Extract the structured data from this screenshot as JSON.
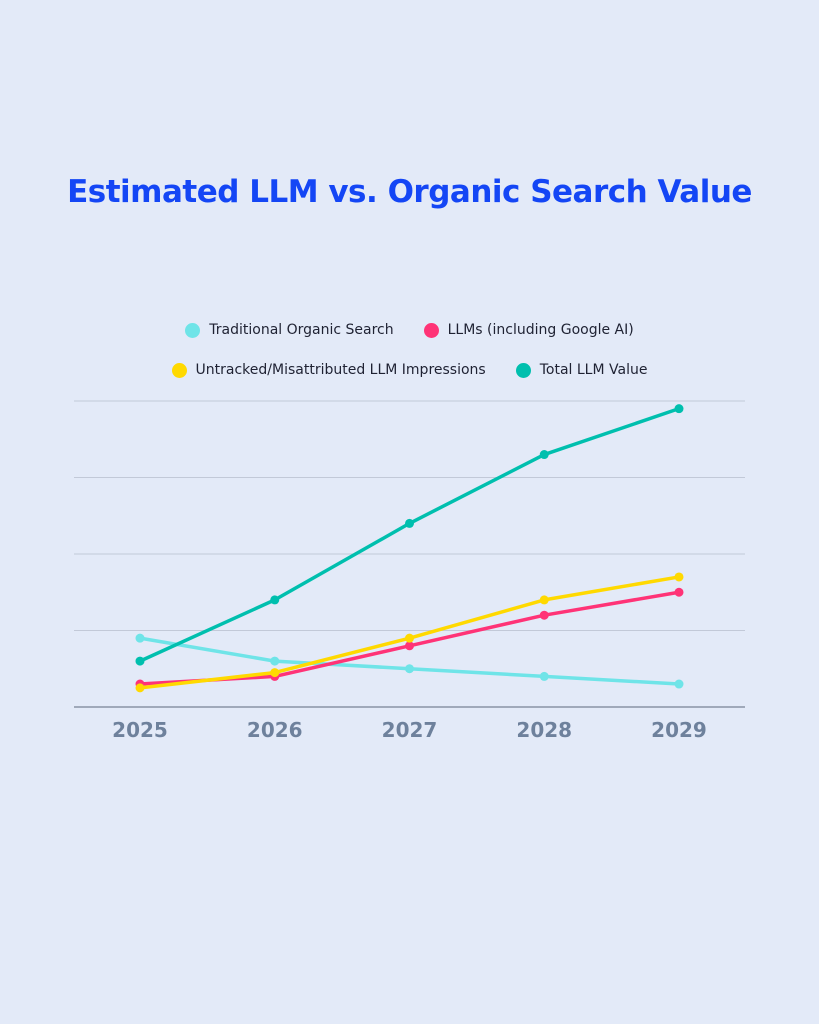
{
  "chart_data": {
    "type": "line",
    "title": "Estimated LLM vs. Organic Search Value",
    "xlabel": "",
    "ylabel": "",
    "categories": [
      "2025",
      "2026",
      "2027",
      "2028",
      "2029"
    ],
    "ylim": [
      0,
      4
    ],
    "grid": true,
    "legend_position": "top",
    "series": [
      {
        "name": "Traditional Organic Search",
        "color": "#6fe4e8",
        "values": [
          0.9,
          0.6,
          0.5,
          0.4,
          0.3
        ]
      },
      {
        "name": "LLMs (including Google AI)",
        "color": "#ff3377",
        "values": [
          0.3,
          0.4,
          0.8,
          1.2,
          1.5
        ]
      },
      {
        "name": "Untracked/Misattributed LLM Impressions",
        "color": "#ffd900",
        "values": [
          0.25,
          0.45,
          0.9,
          1.4,
          1.7
        ]
      },
      {
        "name": "Total LLM Value",
        "color": "#00bfae",
        "values": [
          0.6,
          1.4,
          2.4,
          3.3,
          3.9
        ]
      }
    ]
  }
}
